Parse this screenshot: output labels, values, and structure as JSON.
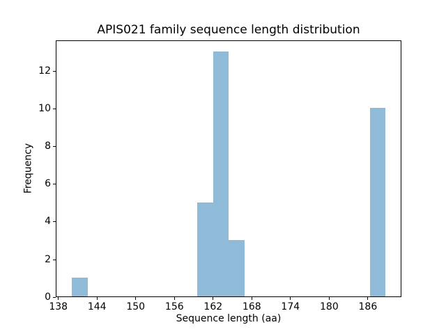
{
  "figure": {
    "background": "#ffffff",
    "axis_color": "#000000"
  },
  "chart_data": {
    "type": "bar",
    "subtype": "histogram",
    "title": "APIS021 family sequence length distribution",
    "xlabel": "Sequence length (aa)",
    "ylabel": "Frequency",
    "bar_color": "#8fbbd9",
    "grid": false,
    "legend": null,
    "xlim": [
      137.6,
      191.2
    ],
    "ylim": [
      0,
      13.65
    ],
    "xticks": [
      138,
      144,
      150,
      156,
      162,
      168,
      174,
      180,
      186
    ],
    "yticks": [
      0,
      2,
      4,
      6,
      8,
      10,
      12
    ],
    "histogram": {
      "bin_start": 140.0,
      "bin_width": 2.43,
      "counts": [
        1,
        0,
        0,
        0,
        0,
        0,
        0,
        0,
        5,
        13,
        3,
        0,
        0,
        0,
        0,
        0,
        0,
        0,
        0,
        10
      ]
    },
    "nonzero_bins": [
      {
        "range": [
          140.0,
          142.4
        ],
        "count": 1
      },
      {
        "range": [
          159.4,
          161.9
        ],
        "count": 5
      },
      {
        "range": [
          161.9,
          164.3
        ],
        "count": 13
      },
      {
        "range": [
          164.3,
          166.7
        ],
        "count": 3
      },
      {
        "range": [
          186.2,
          188.6
        ],
        "count": 10
      }
    ],
    "total_sequences": 32
  }
}
